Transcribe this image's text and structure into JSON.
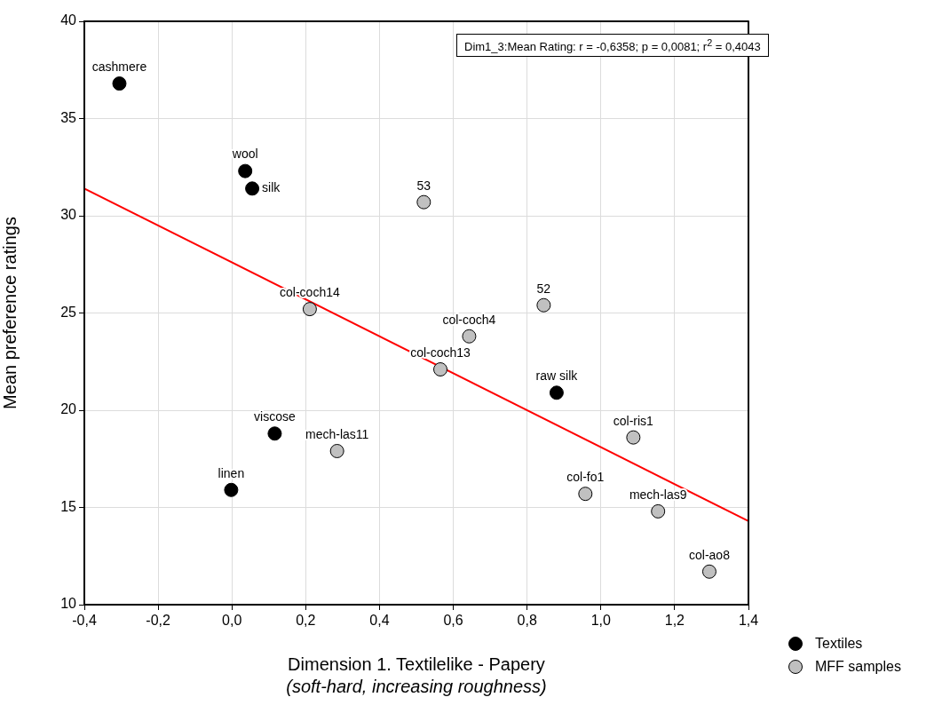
{
  "chart_data": {
    "type": "scatter",
    "xlabel": "Dimension 1. Textilelike - Papery\n(soft-hard, increasing roughness)",
    "ylabel": "Mean preference ratings",
    "xlim": [
      -0.4,
      1.4
    ],
    "ylim": [
      10,
      40
    ],
    "xticks": [
      {
        "value": -0.4,
        "label": "-0,4"
      },
      {
        "value": -0.2,
        "label": "-0,2"
      },
      {
        "value": 0,
        "label": "0,0"
      },
      {
        "value": 0.2,
        "label": "0,2"
      },
      {
        "value": 0.4,
        "label": "0,4"
      },
      {
        "value": 0.6,
        "label": "0,6"
      },
      {
        "value": 0.8,
        "label": "0,8"
      },
      {
        "value": 1.0,
        "label": "1,0"
      },
      {
        "value": 1.2,
        "label": "1,2"
      },
      {
        "value": 1.4,
        "label": "1,4"
      }
    ],
    "yticks": [
      10,
      15,
      20,
      25,
      30,
      35,
      40
    ],
    "grid": true,
    "legend": "bottom right",
    "series": [
      {
        "name": "Textiles",
        "color": "#000000",
        "marker": "circle",
        "x": [
          -0.305,
          0.036,
          0.055,
          0.116,
          -0.002,
          0.88
        ],
        "values": [
          36.8,
          32.3,
          31.4,
          18.8,
          15.9,
          20.9
        ]
      },
      {
        "name": "MFF samples",
        "color": "#c0c0c0",
        "marker": "circle",
        "x": [
          0.52,
          0.211,
          0.565,
          0.285,
          0.643,
          0.845,
          1.088,
          0.958,
          1.155,
          1.294
        ],
        "values": [
          30.7,
          25.2,
          22.1,
          17.9,
          23.8,
          25.4,
          18.6,
          15.7,
          14.8,
          11.7
        ]
      },
      {
        "type": "line",
        "color": "#ff0000",
        "x": [
          -0.4,
          1.4
        ],
        "values": [
          31.4,
          14.3
        ]
      }
    ],
    "annotations": [
      "Dim1_3:Mean Rating:   r = -0,6358; p = 0,0081; r$^{2}$ = 0,4043",
      {
        "text": "cashmere",
        "x": -0.305,
        "y": 36.8
      },
      {
        "text": "wool",
        "x": 0.036,
        "y": 32.3
      },
      {
        "text": "silk",
        "x": 0.055,
        "y": 31.4
      },
      {
        "text": "viscose",
        "x": 0.116,
        "y": 18.8
      },
      {
        "text": "linen",
        "x": -0.002,
        "y": 15.9
      },
      {
        "text": "raw silk",
        "x": 0.88,
        "y": 20.9
      },
      {
        "text": "53",
        "x": 0.52,
        "y": 30.7
      },
      {
        "text": "col-coch14",
        "x": 0.211,
        "y": 25.2
      },
      {
        "text": "col-coch13",
        "x": 0.565,
        "y": 22.1
      },
      {
        "text": "mech-las11",
        "x": 0.285,
        "y": 17.9
      },
      {
        "text": "col-coch4",
        "x": 0.643,
        "y": 23.8
      },
      {
        "text": "52",
        "x": 0.845,
        "y": 25.4
      },
      {
        "text": "col-ris1",
        "x": 1.088,
        "y": 18.6
      },
      {
        "text": "col-fo1",
        "x": 0.958,
        "y": 15.7
      },
      {
        "text": "mech-las9",
        "x": 1.155,
        "y": 14.8
      },
      {
        "text": "col-ao8",
        "x": 1.294,
        "y": 11.7
      }
    ]
  }
}
